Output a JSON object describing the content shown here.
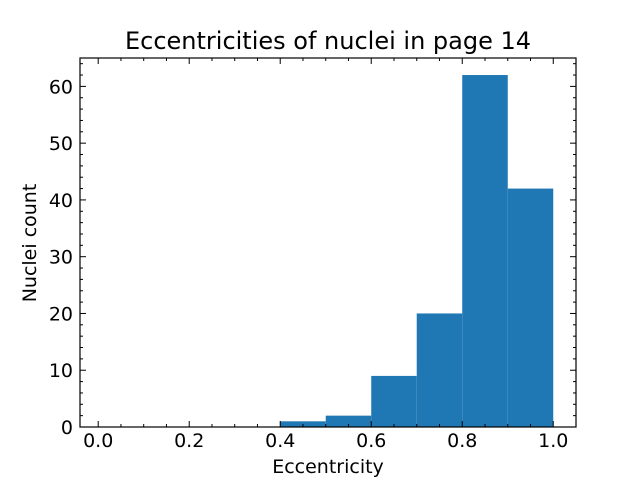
{
  "chart_data": {
    "type": "bar",
    "title": "Eccentricities of nuclei in page 14",
    "xlabel": "Eccentricity",
    "ylabel": "Nuclei count",
    "bin_edges": [
      0.4,
      0.5,
      0.6,
      0.7,
      0.8,
      0.9,
      1.0
    ],
    "values": [
      1,
      2,
      9,
      20,
      62,
      42
    ],
    "xlim": [
      -0.04,
      1.05
    ],
    "ylim": [
      0,
      65
    ],
    "x_ticks": [
      0.0,
      0.2,
      0.4,
      0.6,
      0.8,
      1.0
    ],
    "x_tick_labels": [
      "0.0",
      "0.2",
      "0.4",
      "0.6",
      "0.8",
      "1.0"
    ],
    "y_ticks": [
      0,
      10,
      20,
      30,
      40,
      50,
      60
    ],
    "y_tick_labels": [
      "0",
      "10",
      "20",
      "30",
      "40",
      "50",
      "60"
    ],
    "bar_color": "#1f77b4",
    "grid": false,
    "tick_direction": "in"
  }
}
